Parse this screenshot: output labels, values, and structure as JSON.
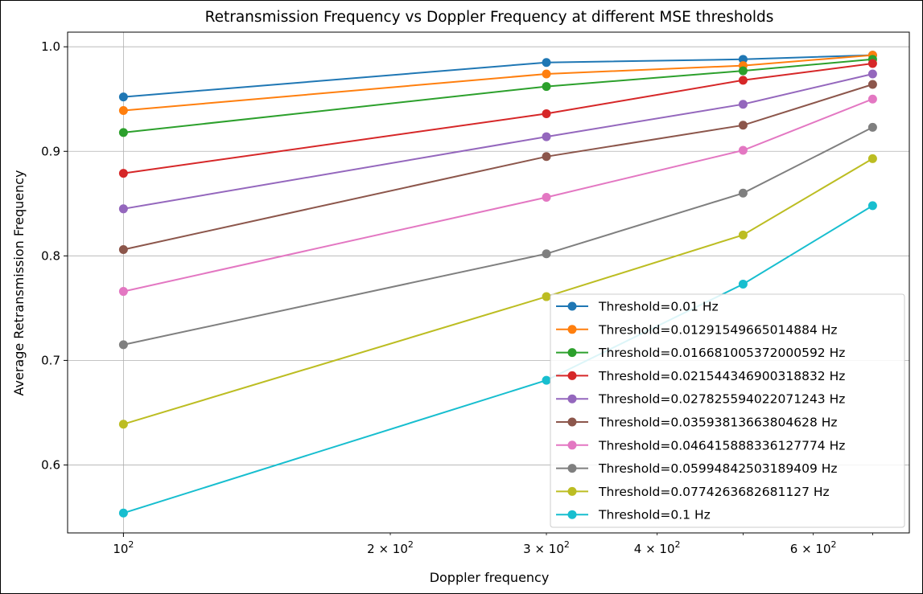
{
  "chart_data": {
    "type": "line",
    "title": "Retransmission Frequency vs Doppler Frequency at different MSE thresholds",
    "xlabel": "Doppler frequency",
    "ylabel": "Average Retransmission Frequency",
    "x_scale": "log",
    "xlim": [
      86.5,
      770
    ],
    "ylim": [
      0.535,
      1.014
    ],
    "grid": true,
    "legend_position": "lower-right",
    "x_ticks": [
      {
        "value": 100,
        "base": "10",
        "exp": "2"
      },
      {
        "value": 200,
        "base": "2 × 10",
        "exp": "2"
      },
      {
        "value": 300,
        "base": "3 × 10",
        "exp": "2"
      },
      {
        "value": 400,
        "base": "4 × 10",
        "exp": "2"
      },
      {
        "value": 600,
        "base": "6 × 10",
        "exp": "2"
      }
    ],
    "y_ticks": [
      {
        "value": 0.6,
        "label": "0.6"
      },
      {
        "value": 0.7,
        "label": "0.7"
      },
      {
        "value": 0.8,
        "label": "0.8"
      },
      {
        "value": 0.9,
        "label": "0.9"
      },
      {
        "value": 1.0,
        "label": "1.0"
      }
    ],
    "x": [
      100,
      300,
      500,
      700
    ],
    "series": [
      {
        "name": "Threshold=0.01 Hz",
        "color": "#1f77b4",
        "values": [
          0.952,
          0.985,
          0.988,
          0.992
        ]
      },
      {
        "name": "Threshold=0.01291549665014884 Hz",
        "color": "#ff7f0e",
        "values": [
          0.939,
          0.974,
          0.982,
          0.992
        ]
      },
      {
        "name": "Threshold=0.016681005372000592 Hz",
        "color": "#2ca02c",
        "values": [
          0.918,
          0.962,
          0.977,
          0.988
        ]
      },
      {
        "name": "Threshold=0.021544346900318832 Hz",
        "color": "#d62728",
        "values": [
          0.879,
          0.936,
          0.968,
          0.984
        ]
      },
      {
        "name": "Threshold=0.027825594022071243 Hz",
        "color": "#9467bd",
        "values": [
          0.845,
          0.914,
          0.945,
          0.974
        ]
      },
      {
        "name": "Threshold=0.03593813663804628 Hz",
        "color": "#8c564b",
        "values": [
          0.806,
          0.895,
          0.925,
          0.964
        ]
      },
      {
        "name": "Threshold=0.046415888336127774 Hz",
        "color": "#e377c2",
        "values": [
          0.766,
          0.856,
          0.901,
          0.95
        ]
      },
      {
        "name": "Threshold=0.05994842503189409 Hz",
        "color": "#7f7f7f",
        "values": [
          0.715,
          0.802,
          0.86,
          0.923
        ]
      },
      {
        "name": "Threshold=0.0774263682681127 Hz",
        "color": "#bcbd22",
        "values": [
          0.639,
          0.761,
          0.82,
          0.893
        ]
      },
      {
        "name": "Threshold=0.1 Hz",
        "color": "#17becf",
        "values": [
          0.554,
          0.681,
          0.773,
          0.848
        ]
      }
    ]
  }
}
